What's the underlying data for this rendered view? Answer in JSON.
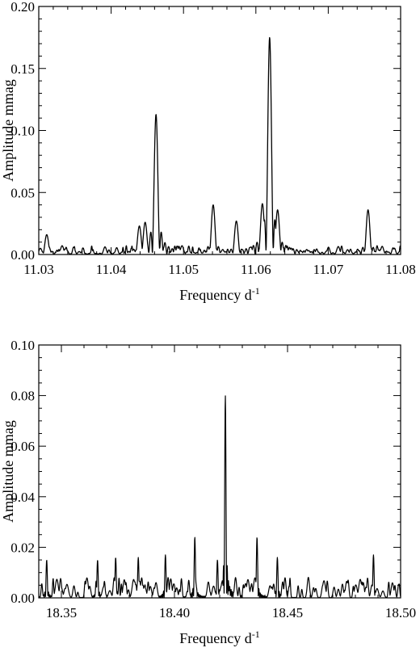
{
  "chart_data": [
    {
      "type": "line",
      "title": "",
      "xlabel": "Frequency d",
      "xlabel_superscript": "-1",
      "ylabel": "Amplitude mmag",
      "xlim": [
        11.03,
        11.08
      ],
      "ylim": [
        0.0,
        0.2
      ],
      "xticks": [
        "11.03",
        "11.04",
        "11.05",
        "11.06",
        "11.07",
        "11.08"
      ],
      "yticks": [
        "0.00",
        "0.05",
        "0.10",
        "0.15",
        "0.20"
      ],
      "grid": false,
      "legend": "none",
      "line_color": "#000000",
      "peaks": [
        {
          "x": 11.0462,
          "y": 0.113
        },
        {
          "x": 11.0619,
          "y": 0.175
        },
        {
          "x": 11.0755,
          "y": 0.036
        },
        {
          "x": 11.0541,
          "y": 0.04
        },
        {
          "x": 11.0609,
          "y": 0.041
        },
        {
          "x": 11.063,
          "y": 0.036
        },
        {
          "x": 11.0573,
          "y": 0.027
        },
        {
          "x": 11.0447,
          "y": 0.026
        },
        {
          "x": 11.0439,
          "y": 0.023
        },
        {
          "x": 11.0311,
          "y": 0.016
        }
      ],
      "noise_level": 0.006
    },
    {
      "type": "line",
      "title": "",
      "xlabel": "Frequency d",
      "xlabel_superscript": "-1",
      "ylabel": "Amplitude mmag",
      "xlim": [
        18.34,
        18.5
      ],
      "ylim": [
        0.0,
        0.1
      ],
      "xticks": [
        "18.35",
        "18.40",
        "18.45",
        "18.50"
      ],
      "yticks": [
        "0.00",
        "0.02",
        "0.04",
        "0.06",
        "0.08",
        "0.10"
      ],
      "grid": false,
      "legend": "none",
      "line_color": "#000000",
      "peaks": [
        {
          "x": 18.4225,
          "y": 0.08
        },
        {
          "x": 18.409,
          "y": 0.024
        },
        {
          "x": 18.4365,
          "y": 0.024
        },
        {
          "x": 18.488,
          "y": 0.017
        },
        {
          "x": 18.3435,
          "y": 0.015
        },
        {
          "x": 18.396,
          "y": 0.017
        },
        {
          "x": 18.384,
          "y": 0.016
        },
        {
          "x": 18.374,
          "y": 0.016
        },
        {
          "x": 18.366,
          "y": 0.015
        },
        {
          "x": 18.4455,
          "y": 0.016
        },
        {
          "x": 18.419,
          "y": 0.015
        }
      ],
      "noise_level": 0.007
    }
  ]
}
